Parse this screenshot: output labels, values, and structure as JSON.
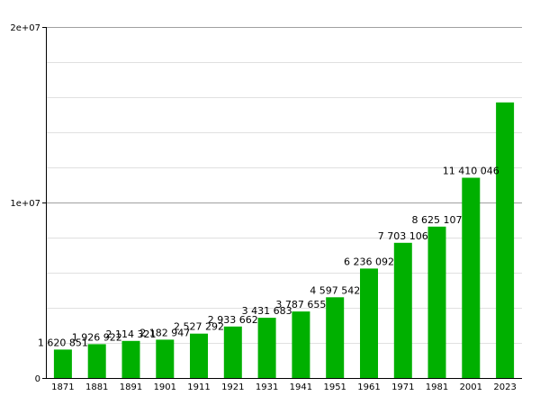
{
  "colors": {
    "bar": "#00b000",
    "grid_major": "#a0a0a0",
    "grid_minor": "#e0e0e0",
    "axis": "#000000",
    "background": "#ffffff"
  },
  "chart_data": {
    "type": "bar",
    "title": "",
    "xlabel": "",
    "ylabel": "",
    "categories": [
      "1871",
      "1881",
      "1891",
      "1901",
      "1911",
      "1921",
      "1931",
      "1941",
      "1951",
      "1961",
      "1971",
      "1981",
      "2001",
      "2023"
    ],
    "values": [
      1620851,
      1926922,
      2114321,
      2182947,
      2527292,
      2933662,
      3431683,
      3787655,
      4597542,
      6236092,
      7703106,
      8625107,
      11410046,
      15700000
    ],
    "value_labels": [
      "1 620 851",
      "1 926 922",
      "2 114 321",
      "2 182 947",
      "2 527 292",
      "2 933 662",
      "3 431 683",
      "3 787 655",
      "4 597 542",
      "6 236 092",
      "7 703 106",
      "8 625 107",
      "11 410 046",
      ""
    ],
    "ylim": [
      0,
      20000000
    ],
    "y_major_ticks": [
      {
        "value": 0,
        "label": "0"
      },
      {
        "value": 10000000,
        "label": "1e+07"
      },
      {
        "value": 20000000,
        "label": "2e+07"
      }
    ],
    "y_minor_step": 2000000,
    "grid": true,
    "legend": "none"
  }
}
